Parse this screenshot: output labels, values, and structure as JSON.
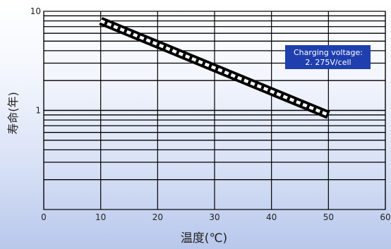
{
  "chart_data": {
    "type": "line",
    "title": "",
    "xlabel": "温度(℃)",
    "ylabel": "寿命(年)",
    "x_ticks": [
      "0",
      "10",
      "20",
      "30",
      "40",
      "50",
      "60"
    ],
    "y_ticks": [
      "10",
      "1"
    ],
    "xlim": [
      0,
      60
    ],
    "ylim": [
      0.1,
      10
    ],
    "y_scale": "log",
    "grid": true,
    "series": [
      {
        "x": [
          10,
          50
        ],
        "y": [
          8,
          0.9
        ],
        "style": "black-white dashed band"
      }
    ],
    "annotation": {
      "line1": "Charging voltage:",
      "line2": "2. 275V/cell",
      "color": "#1f3fae"
    },
    "colors": {
      "grid": "#000000",
      "band": "#000000",
      "band_dash": "#ffffff"
    }
  }
}
